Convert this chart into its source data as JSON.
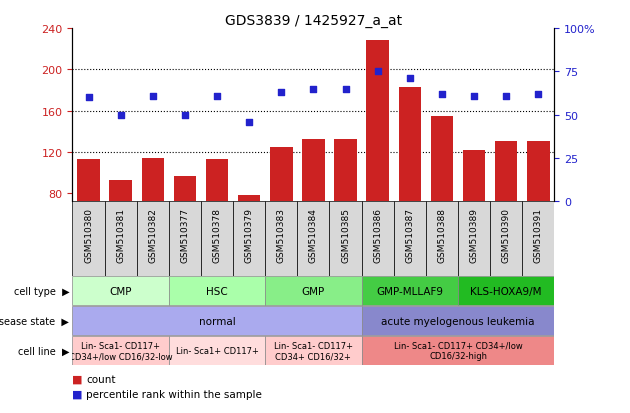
{
  "title": "GDS3839 / 1425927_a_at",
  "samples": [
    "GSM510380",
    "GSM510381",
    "GSM510382",
    "GSM510377",
    "GSM510378",
    "GSM510379",
    "GSM510383",
    "GSM510384",
    "GSM510385",
    "GSM510386",
    "GSM510387",
    "GSM510388",
    "GSM510389",
    "GSM510390",
    "GSM510391"
  ],
  "counts": [
    113,
    93,
    114,
    97,
    113,
    78,
    125,
    132,
    132,
    228,
    183,
    155,
    122,
    131,
    131
  ],
  "percentiles": [
    60,
    50,
    61,
    50,
    61,
    46,
    63,
    65,
    65,
    75,
    71,
    62,
    61,
    61,
    62
  ],
  "ylim_left": [
    72,
    240
  ],
  "ylim_right": [
    0,
    100
  ],
  "yticks_left": [
    80,
    120,
    160,
    200,
    240
  ],
  "yticks_right": [
    0,
    25,
    50,
    75,
    100
  ],
  "cell_type_groups": [
    {
      "label": "CMP",
      "start": 0,
      "end": 3,
      "color": "#ccffcc"
    },
    {
      "label": "HSC",
      "start": 3,
      "end": 6,
      "color": "#aaffaa"
    },
    {
      "label": "GMP",
      "start": 6,
      "end": 9,
      "color": "#88ee88"
    },
    {
      "label": "GMP-MLLAF9",
      "start": 9,
      "end": 12,
      "color": "#44cc44"
    },
    {
      "label": "KLS-HOXA9/M",
      "start": 12,
      "end": 15,
      "color": "#22bb22"
    }
  ],
  "disease_state_groups": [
    {
      "label": "normal",
      "start": 0,
      "end": 9,
      "color": "#aaaaee"
    },
    {
      "label": "acute myelogenous leukemia",
      "start": 9,
      "end": 15,
      "color": "#8888cc"
    }
  ],
  "cell_line_groups": [
    {
      "label": "Lin- Sca1- CD117+\nCD34+/low CD16/32-low",
      "start": 0,
      "end": 3,
      "color": "#ffcccc"
    },
    {
      "label": "Lin- Sca1+ CD117+",
      "start": 3,
      "end": 6,
      "color": "#ffdddd"
    },
    {
      "label": "Lin- Sca1- CD117+\nCD34+ CD16/32+",
      "start": 6,
      "end": 9,
      "color": "#ffcccc"
    },
    {
      "label": "Lin- Sca1- CD117+ CD34+/low\nCD16/32-high",
      "start": 9,
      "end": 15,
      "color": "#ee8888"
    }
  ],
  "bar_color": "#cc2222",
  "dot_color": "#2222cc",
  "left_axis_color": "#cc2222",
  "right_axis_color": "#2222cc",
  "row_labels": [
    "cell type",
    "disease state",
    "cell line"
  ],
  "legend_items": [
    {
      "color": "#cc2222",
      "label": "count"
    },
    {
      "color": "#2222cc",
      "label": "percentile rank within the sample"
    }
  ]
}
